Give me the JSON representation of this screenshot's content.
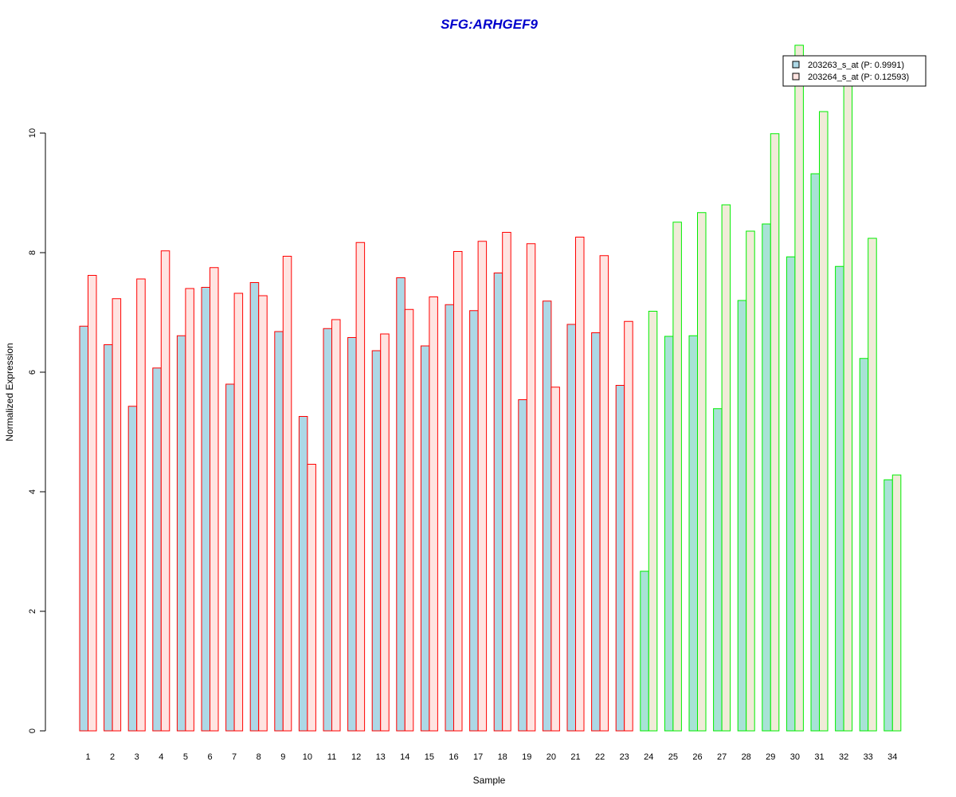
{
  "chart_data": {
    "type": "bar",
    "title": "SFG:ARHGEF9",
    "xlabel": "Sample",
    "ylabel": "Normalized Expression",
    "ylim": [
      0,
      11.5
    ],
    "yticks": [
      0,
      2,
      4,
      6,
      8,
      10
    ],
    "categories": [
      "1",
      "2",
      "3",
      "4",
      "5",
      "6",
      "7",
      "8",
      "9",
      "10",
      "11",
      "12",
      "13",
      "14",
      "15",
      "16",
      "17",
      "18",
      "19",
      "20",
      "21",
      "22",
      "23",
      "24",
      "25",
      "26",
      "27",
      "28",
      "29",
      "30",
      "31",
      "32",
      "33",
      "34"
    ],
    "groups": [
      {
        "from": 1,
        "to": 23,
        "border_color": "#ff0000",
        "fills": [
          "#add8e6",
          "#ffe4e1"
        ]
      },
      {
        "from": 24,
        "to": 34,
        "border_color": "#00ee00",
        "fills": [
          "#a8e2d6",
          "#f0ebd8"
        ]
      }
    ],
    "series": [
      {
        "name": "203263_s_at (P: 0.9991)",
        "legend_fill": "#add8e6",
        "values": [
          6.77,
          6.46,
          5.43,
          6.07,
          6.61,
          7.42,
          5.8,
          7.5,
          6.68,
          5.26,
          6.73,
          6.58,
          6.36,
          7.58,
          6.44,
          7.13,
          7.03,
          7.66,
          5.54,
          7.19,
          6.8,
          6.66,
          5.78,
          2.67,
          6.6,
          6.61,
          5.39,
          7.2,
          8.48,
          7.93,
          9.32,
          7.77,
          6.23,
          4.2
        ]
      },
      {
        "name": "203264_s_at (P: 0.12593)",
        "legend_fill": "#ffe4e1",
        "values": [
          7.62,
          7.23,
          7.56,
          8.03,
          7.4,
          7.75,
          7.32,
          7.28,
          7.94,
          4.46,
          6.88,
          8.17,
          6.64,
          7.05,
          7.26,
          8.02,
          8.19,
          8.34,
          8.15,
          5.75,
          8.26,
          7.95,
          6.85,
          7.02,
          8.51,
          8.67,
          8.8,
          8.36,
          9.99,
          11.47,
          10.36,
          11.1,
          8.24,
          4.28
        ]
      }
    ],
    "legend_position": "top-right",
    "grid": false
  }
}
